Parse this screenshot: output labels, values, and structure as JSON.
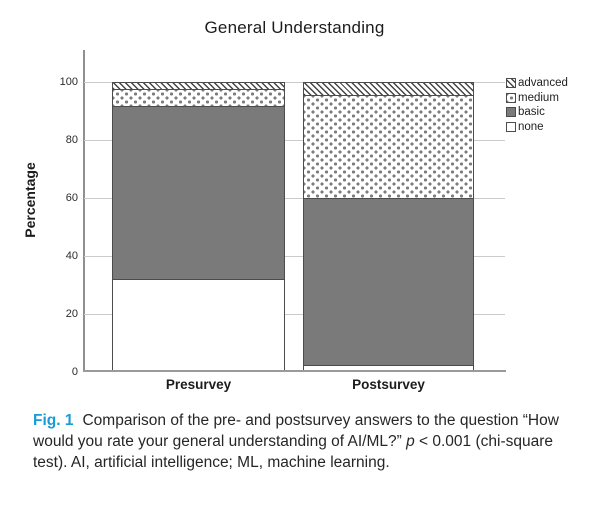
{
  "chart_data": {
    "type": "bar",
    "stacked": true,
    "title": "General Understanding",
    "ylabel": "Percentage",
    "categories": [
      "Presurvey",
      "Postsurvey"
    ],
    "series": [
      {
        "name": "none",
        "values": [
          32,
          2
        ]
      },
      {
        "name": "basic",
        "values": [
          60,
          58
        ]
      },
      {
        "name": "medium",
        "values": [
          6,
          36
        ]
      },
      {
        "name": "advanced",
        "values": [
          2,
          4
        ]
      }
    ],
    "legend": [
      "advanced",
      "medium",
      "basic",
      "none"
    ],
    "legend_position": "top-right",
    "ylim": [
      0,
      100
    ],
    "yticks": [
      0,
      20,
      40,
      60,
      80,
      100
    ],
    "grid": true
  },
  "colors": {
    "basic_fill": "#7a7a7a",
    "pattern_ink": "#4c4c4c",
    "gridline": "#cbcbcb",
    "axis_line": "#9a9a9a",
    "fig_label_blue": "#189bd7",
    "caption_text": "#262626"
  },
  "caption": {
    "fig_label": "Fig. 1",
    "segments": [
      {
        "style": "normal",
        "text": "Comparison of the pre- and postsurvey answers to the question “How would you rate your general understanding of AI/ML?” "
      },
      {
        "style": "italic",
        "text": "p"
      },
      {
        "style": "normal",
        "text": " < 0.001 (chi-square test). AI, artificial intelligence; ML, machine learning."
      }
    ]
  }
}
